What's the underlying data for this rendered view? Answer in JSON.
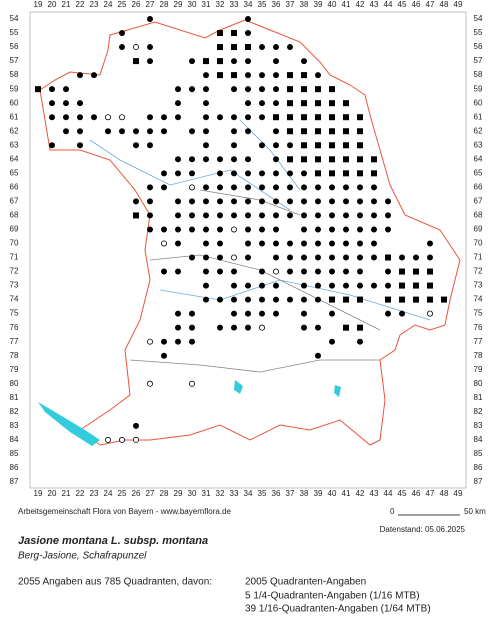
{
  "map": {
    "columns": [
      19,
      20,
      21,
      22,
      23,
      24,
      25,
      26,
      27,
      28,
      29,
      30,
      31,
      32,
      33,
      34,
      35,
      36,
      37,
      38,
      39,
      40,
      41,
      42,
      43,
      44,
      45,
      46,
      47,
      48,
      49
    ],
    "rows": [
      54,
      55,
      56,
      57,
      58,
      59,
      60,
      61,
      62,
      63,
      64,
      65,
      66,
      67,
      68,
      69,
      70,
      71,
      72,
      73,
      74,
      75,
      76,
      77,
      78,
      79,
      80,
      81,
      82,
      83,
      84,
      85,
      86,
      87
    ],
    "records": [
      {
        "row": 54,
        "filled": [
          27,
          34
        ],
        "squares": [],
        "open": []
      },
      {
        "row": 55,
        "filled": [
          25,
          34
        ],
        "squares": [
          32,
          33
        ],
        "open": []
      },
      {
        "row": 56,
        "filled": [
          25,
          27,
          35,
          36,
          37
        ],
        "squares": [
          32,
          33,
          34
        ],
        "open": [
          26
        ]
      },
      {
        "row": 57,
        "filled": [
          27,
          30,
          33,
          34,
          36,
          38
        ],
        "squares": [
          26,
          31,
          32
        ],
        "open": []
      },
      {
        "row": 58,
        "filled": [
          22,
          23,
          31,
          34,
          35,
          36,
          39
        ],
        "squares": [
          32,
          33,
          37,
          38
        ],
        "open": []
      },
      {
        "row": 59,
        "filled": [
          20,
          21,
          29,
          30,
          31,
          33,
          34,
          35,
          36
        ],
        "squares": [
          19,
          37,
          38,
          39,
          40
        ],
        "open": []
      },
      {
        "row": 60,
        "filled": [
          20,
          21,
          22,
          29,
          31,
          34,
          35,
          36
        ],
        "squares": [
          37,
          38,
          39,
          40,
          41
        ],
        "open": []
      },
      {
        "row": 61,
        "filled": [
          20,
          21,
          22,
          23,
          27,
          28,
          29,
          31,
          32,
          33,
          34,
          35
        ],
        "squares": [
          36,
          37,
          38,
          39,
          40,
          41,
          42
        ],
        "open": [
          24,
          25
        ]
      },
      {
        "row": 62,
        "filled": [
          21,
          22,
          24,
          25,
          26,
          27,
          28,
          30,
          31,
          33,
          34,
          36
        ],
        "squares": [
          37,
          38,
          39,
          40,
          41,
          42
        ],
        "open": []
      },
      {
        "row": 63,
        "filled": [
          20,
          22,
          26,
          27,
          31,
          33,
          35,
          36,
          37
        ],
        "squares": [
          38,
          39,
          40,
          41,
          42
        ],
        "open": []
      },
      {
        "row": 64,
        "filled": [
          29,
          30,
          31,
          32,
          33,
          34,
          36
        ],
        "squares": [
          37,
          38,
          39,
          40,
          41,
          42,
          43
        ],
        "open": []
      },
      {
        "row": 65,
        "filled": [
          28,
          29,
          30,
          32,
          33,
          34,
          35,
          36,
          37,
          38
        ],
        "squares": [
          39,
          40,
          41,
          42,
          43
        ],
        "open": []
      },
      {
        "row": 66,
        "filled": [
          27,
          28,
          31,
          32,
          33,
          34,
          35,
          36,
          37,
          38,
          39,
          40,
          41,
          42,
          43
        ],
        "squares": [],
        "open": [
          30
        ]
      },
      {
        "row": 67,
        "filled": [
          26,
          27,
          29,
          30,
          31,
          32,
          33,
          34,
          35,
          36,
          37,
          38,
          39,
          40,
          41,
          42,
          43,
          44
        ],
        "squares": [],
        "open": []
      },
      {
        "row": 68,
        "filled": [
          27,
          29,
          30,
          31,
          32,
          33,
          34,
          35,
          36,
          37,
          38,
          39,
          40,
          41,
          42,
          43,
          44
        ],
        "squares": [
          26
        ],
        "open": []
      },
      {
        "row": 69,
        "filled": [
          27,
          28,
          29,
          30,
          31,
          32,
          34,
          35,
          36,
          38,
          39,
          40,
          41,
          42,
          43,
          44
        ],
        "squares": [],
        "open": [
          33
        ]
      },
      {
        "row": 70,
        "filled": [
          29,
          31,
          32,
          34,
          35,
          36,
          37,
          38,
          39,
          40,
          41,
          42,
          43,
          47
        ],
        "squares": [],
        "open": [
          28
        ]
      },
      {
        "row": 71,
        "filled": [
          30,
          31,
          32,
          34,
          36,
          37,
          38,
          39,
          40,
          41,
          42,
          43,
          45,
          46,
          47
        ],
        "squares": [
          44
        ],
        "open": [
          33
        ]
      },
      {
        "row": 72,
        "filled": [
          28,
          29,
          31,
          32,
          33,
          35,
          37,
          38,
          39,
          40,
          41,
          42,
          44
        ],
        "squares": [
          45,
          46,
          47
        ],
        "open": [
          36
        ]
      },
      {
        "row": 73,
        "filled": [
          31,
          33,
          34,
          35,
          36,
          38,
          39,
          40,
          41,
          42,
          43,
          44
        ],
        "squares": [
          45,
          46,
          47
        ],
        "open": []
      },
      {
        "row": 74,
        "filled": [
          31,
          32,
          33,
          34,
          35,
          36,
          37,
          38,
          39
        ],
        "squares": [
          40,
          41,
          42,
          44,
          45,
          46,
          47,
          48
        ],
        "open": []
      },
      {
        "row": 75,
        "filled": [
          29,
          30,
          33,
          34,
          35,
          36,
          38,
          40,
          44,
          45
        ],
        "squares": [],
        "open": [
          47
        ]
      },
      {
        "row": 76,
        "filled": [
          29,
          30,
          32,
          33,
          34,
          38,
          39
        ],
        "squares": [
          41,
          42
        ],
        "open": [
          35
        ]
      },
      {
        "row": 77,
        "filled": [
          28,
          29,
          30,
          40,
          42
        ],
        "squares": [],
        "open": [
          27
        ]
      },
      {
        "row": 78,
        "filled": [
          28,
          39
        ],
        "squares": [],
        "open": []
      },
      {
        "row": 80,
        "filled": [],
        "squares": [],
        "open": [
          27,
          30
        ]
      },
      {
        "row": 83,
        "filled": [
          26
        ],
        "squares": [],
        "open": []
      },
      {
        "row": 84,
        "filled": [],
        "squares": [],
        "open": [
          24,
          25,
          26
        ]
      }
    ]
  },
  "footer": {
    "credit": "Arbeitsgemeinschaft Flora von Bayern - www.bayernflora.de",
    "scale_start": "0",
    "scale_end": "50 km",
    "date": "Datenstand: 05.06.2025",
    "species": "Jasione montana L. subsp. montana",
    "common_name": "Berg-Jasione, Schafrapunzel",
    "summary": "2055 Angaben aus 785 Quadranten, davon:",
    "details": [
      "2005 Quadranten-Angaben",
      "5 1/4-Quadranten-Angaben (1/16 MTB)",
      "39 1/16-Quadranten-Angaben (1/64 MTB)"
    ]
  }
}
